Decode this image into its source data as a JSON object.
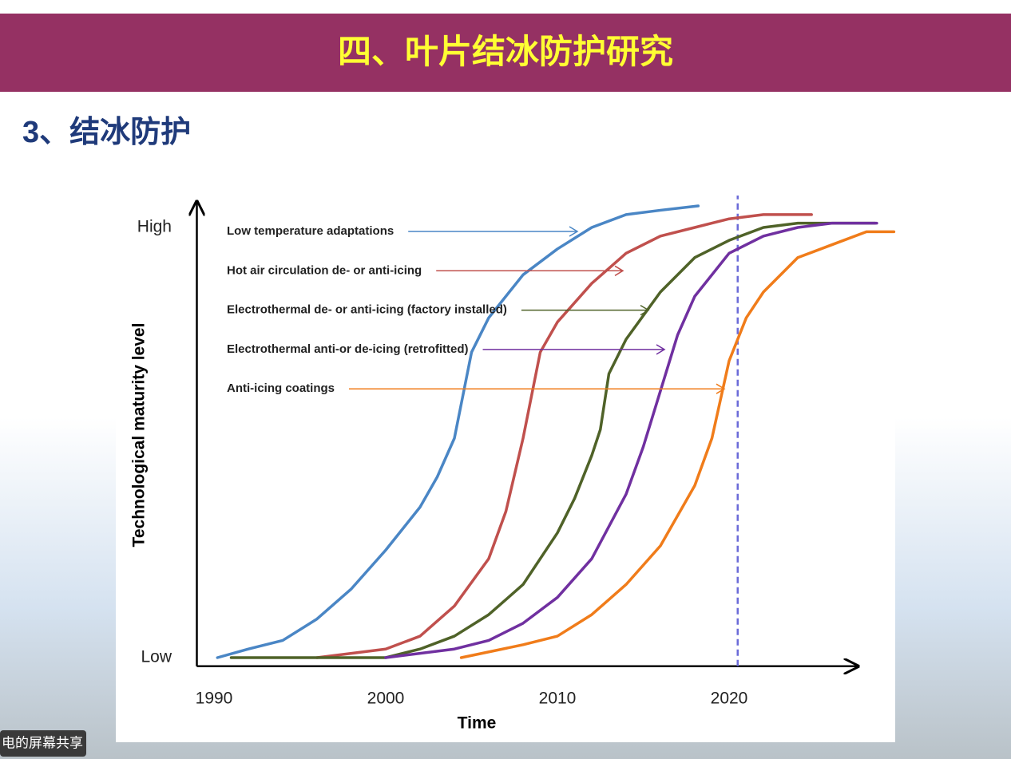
{
  "slide": {
    "title": "四、叶片结冰防护研究",
    "subtitle": "3、结冰防护"
  },
  "overlay": "电的屏幕共享",
  "chart_data": {
    "type": "line",
    "x_label": "Time",
    "y_label": "Technological maturity level",
    "xlim": [
      1989,
      2027.5
    ],
    "xticks": [
      1990,
      2000,
      2010,
      2020
    ],
    "ylim": [
      -0.02,
      1.06
    ],
    "yticks": [
      {
        "value": 0,
        "label": "Low"
      },
      {
        "value": 1,
        "label": "High"
      }
    ],
    "reference_line": {
      "x": 2020.5,
      "color": "#6b6bd8",
      "style": "dashed"
    },
    "series": [
      {
        "name": "Low temperature adaptations",
        "color": "#4a86c5",
        "x": [
          1990.2,
          1992,
          1994,
          1996,
          1998,
          2000,
          2002,
          2003,
          2004,
          2005,
          2006,
          2008,
          2010,
          2012,
          2014,
          2016,
          2018.2
        ],
        "values": [
          0,
          0.02,
          0.04,
          0.09,
          0.16,
          0.25,
          0.35,
          0.42,
          0.51,
          0.71,
          0.79,
          0.89,
          0.95,
          1.0,
          1.03,
          1.04,
          1.05
        ]
      },
      {
        "name": "Hot air circulation de- or anti-icing",
        "color": "#c0504d",
        "x": [
          1996,
          2000,
          2002,
          2004,
          2006,
          2007,
          2008,
          2009,
          2010,
          2012,
          2014,
          2016,
          2018,
          2020,
          2022,
          2024.8
        ],
        "values": [
          0,
          0.02,
          0.05,
          0.12,
          0.23,
          0.34,
          0.51,
          0.71,
          0.78,
          0.87,
          0.94,
          0.98,
          1.0,
          1.02,
          1.03,
          1.03
        ]
      },
      {
        "name": "Electrothermal de- or anti-icing (factory installed)",
        "color": "#4f6228",
        "x": [
          1991,
          1996,
          2000,
          2002,
          2004,
          2006,
          2008,
          2010,
          2011,
          2012,
          2012.5,
          2013,
          2014,
          2016,
          2018,
          2020,
          2022,
          2024,
          2026,
          2028.5
        ],
        "values": [
          0,
          0,
          0,
          0.02,
          0.05,
          0.1,
          0.17,
          0.29,
          0.37,
          0.47,
          0.53,
          0.66,
          0.74,
          0.85,
          0.93,
          0.97,
          1.0,
          1.01,
          1.01,
          1.01
        ]
      },
      {
        "name": "Electrothermal anti-or de-icing (retrofitted)",
        "color": "#7030a0",
        "x": [
          2000,
          2004,
          2006,
          2008,
          2010,
          2012,
          2014,
          2015,
          2016,
          2017,
          2018,
          2020,
          2022,
          2024,
          2026,
          2028.6
        ],
        "values": [
          0,
          0.02,
          0.04,
          0.08,
          0.14,
          0.23,
          0.38,
          0.49,
          0.62,
          0.75,
          0.84,
          0.94,
          0.98,
          1.0,
          1.01,
          1.01
        ]
      },
      {
        "name": "Anti-icing coatings",
        "color": "#f07c1a",
        "x": [
          2004.4,
          2008,
          2010,
          2012,
          2014,
          2016,
          2018,
          2019,
          2020,
          2021,
          2022,
          2024,
          2026,
          2028,
          2029.6
        ],
        "values": [
          0,
          0.03,
          0.05,
          0.1,
          0.17,
          0.26,
          0.4,
          0.51,
          0.69,
          0.79,
          0.85,
          0.93,
          0.96,
          0.99,
          0.99
        ]
      }
    ]
  }
}
